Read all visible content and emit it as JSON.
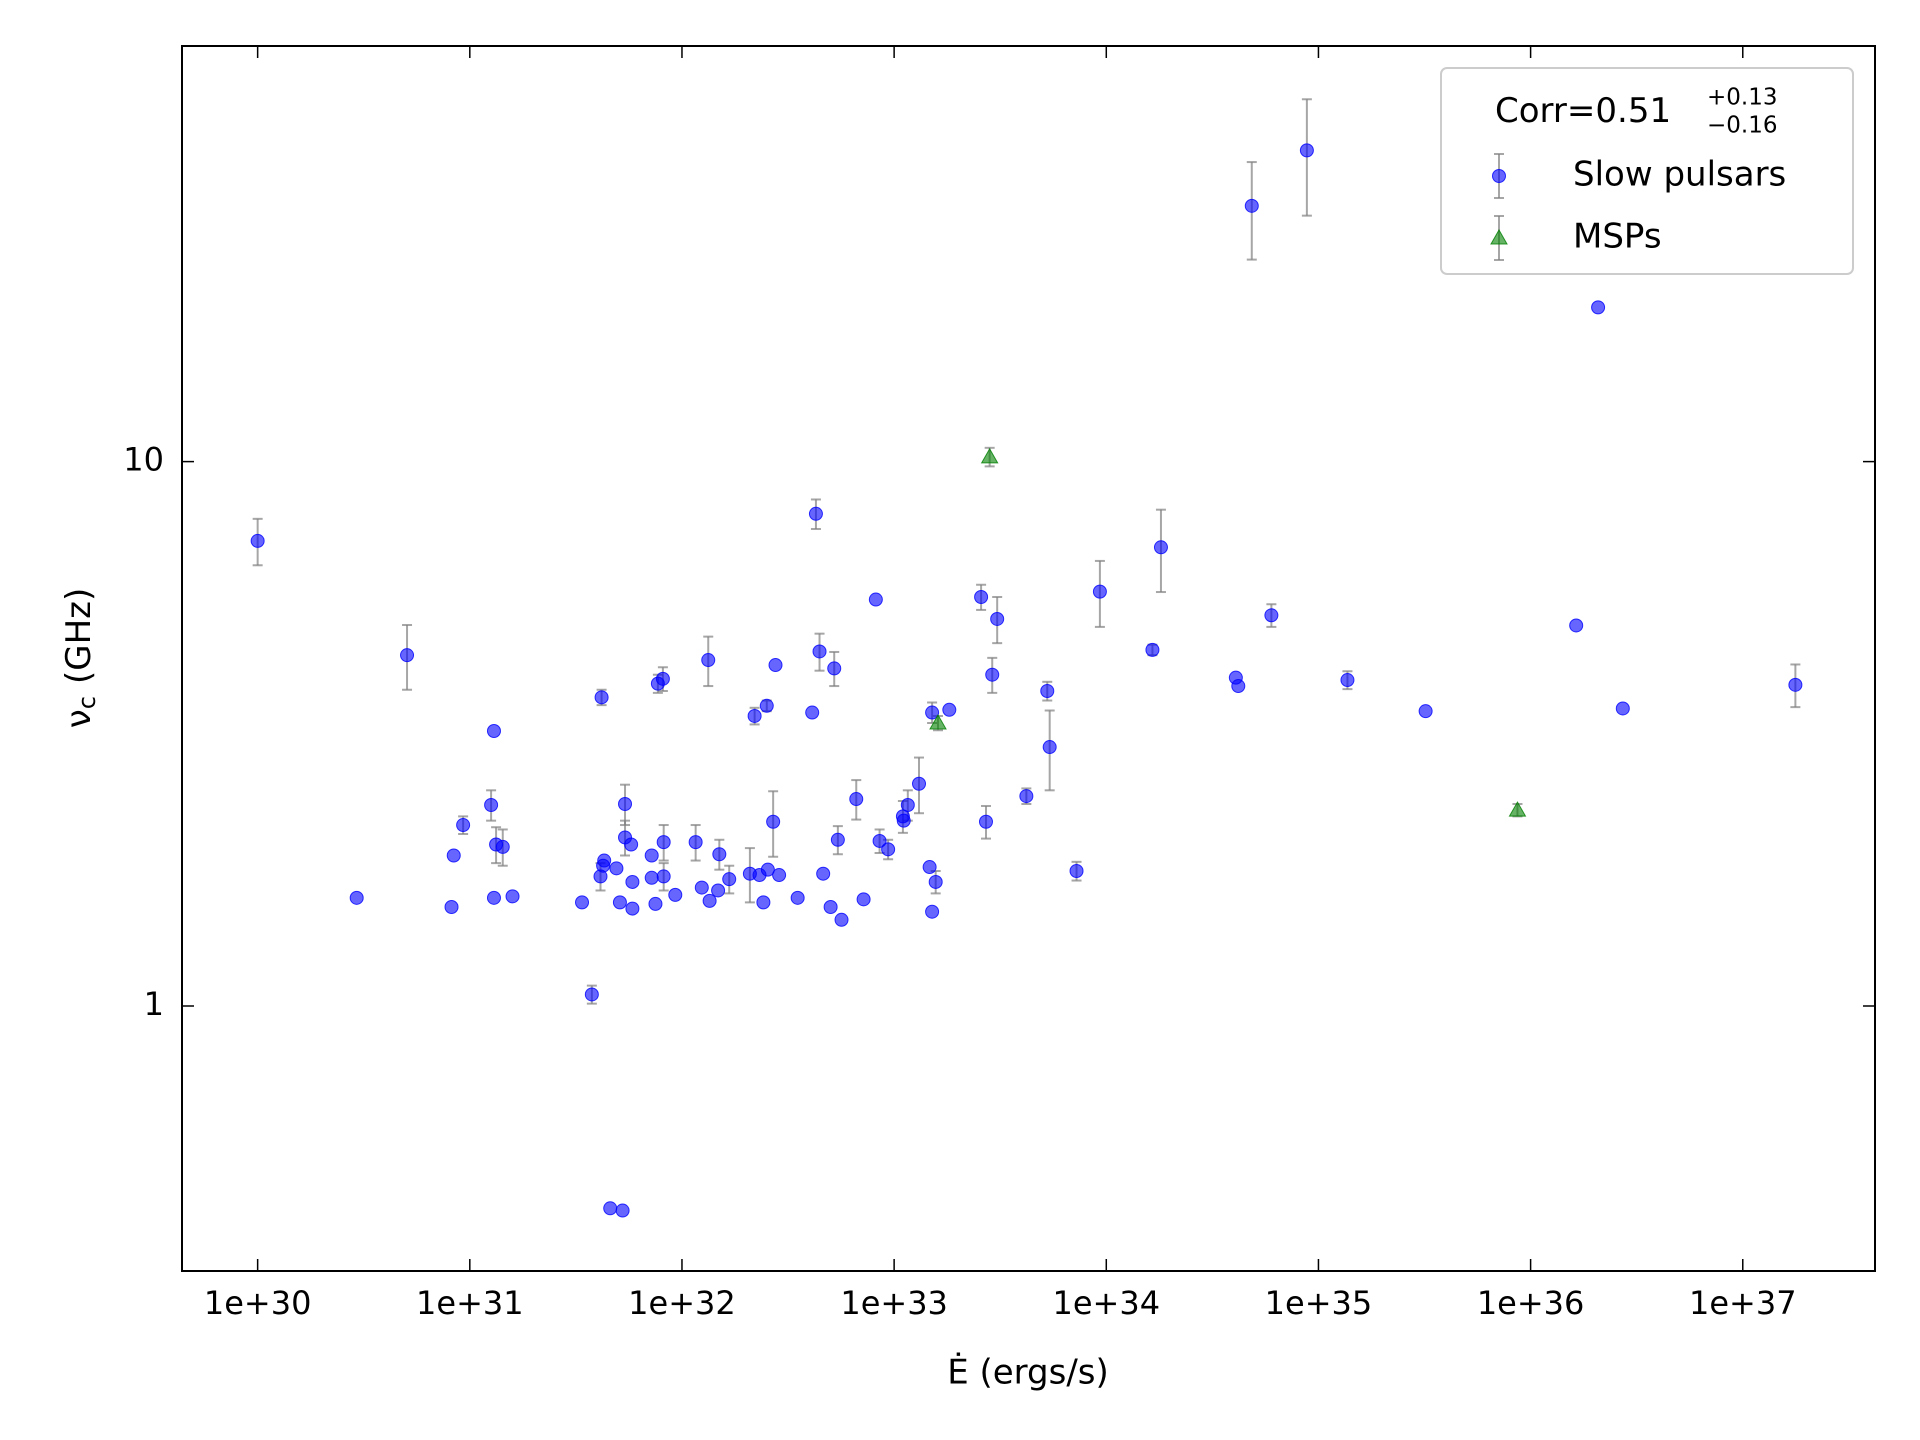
{
  "chart_data": {
    "type": "scatter",
    "xlabel": "Ė (ergs/s)",
    "ylabel": {
      "text": "ν",
      "sub": "c",
      "unit": "(GHz)"
    },
    "xscale": "log",
    "yscale": "log",
    "xlim": [
      4.4e+29,
      4.2e+37
    ],
    "ylim": [
      0.326,
      58
    ],
    "xticks": [
      {
        "value": 1e+30,
        "label": "1e+30"
      },
      {
        "value": 1e+31,
        "label": "1e+31"
      },
      {
        "value": 1e+32,
        "label": "1e+32"
      },
      {
        "value": 1e+33,
        "label": "1e+33"
      },
      {
        "value": 1e+34,
        "label": "1e+34"
      },
      {
        "value": 1e+35,
        "label": "1e+35"
      },
      {
        "value": 1e+36,
        "label": "1e+36"
      },
      {
        "value": 1e+37,
        "label": "1e+37"
      }
    ],
    "yticks": [
      1,
      10
    ],
    "legend": {
      "corner": "upper right",
      "title": {
        "text": "Corr=0.51",
        "sup": "+0.13",
        "sub": "−0.16"
      }
    },
    "series": [
      {
        "name": "Slow pulsars",
        "color": "#0000ff",
        "marker": "circle",
        "x": [
          1e+30,
          2.93e+30,
          5.06e+30,
          8.2e+30,
          8.4e+30,
          9.3e+30,
          1.26e+31,
          1.3e+31,
          1.3e+31,
          1.33e+31,
          1.43e+31,
          1.59e+31,
          3.38e+31,
          3.76e+31,
          4.13e+31,
          4.18e+31,
          4.25e+31,
          4.3e+31,
          4.59e+31,
          4.91e+31,
          5.1e+31,
          5.25e+31,
          5.39e+31,
          5.39e+31,
          5.76e+31,
          5.84e+31,
          5.84e+31,
          7.2e+31,
          7.2e+31,
          7.5e+31,
          7.7e+31,
          8.13e+31,
          8.2e+31,
          8.2e+31,
          9.3e+31,
          1.16e+32,
          1.24e+32,
          1.33e+32,
          1.35e+32,
          1.48e+32,
          1.5e+32,
          1.67e+32,
          2.09e+32,
          2.2e+32,
          2.32e+32,
          2.42e+32,
          2.51e+32,
          2.54e+32,
          2.69e+32,
          2.76e+32,
          2.87e+32,
          3.51e+32,
          4.11e+32,
          4.28e+32,
          4.45e+32,
          4.63e+32,
          5.02e+32,
          5.22e+32,
          5.43e+32,
          5.65e+32,
          6.63e+32,
          7.18e+32,
          8.2e+32,
          8.54e+32,
          9.37e+32,
          1.1e+33,
          1.11e+33,
          1.16e+33,
          1.31e+33,
          1.47e+33,
          1.51e+33,
          1.51e+33,
          1.57e+33,
          1.82e+33,
          2.57e+33,
          2.71e+33,
          2.9e+33,
          3.06e+33,
          4.2e+33,
          5.27e+33,
          5.41e+33,
          7.24e+33,
          9.33e+33,
          1.65e+34,
          1.81e+34,
          4.08e+34,
          4.19e+34,
          4.85e+34,
          6e+34,
          8.82e+34,
          1.37e+35,
          3.2e+35,
          1.64e+36,
          2.08e+36,
          2.72e+36,
          1.77e+37
        ],
        "values": [
          7.15,
          1.58,
          4.41,
          1.52,
          1.89,
          2.15,
          2.34,
          3.2,
          1.58,
          1.98,
          1.96,
          1.59,
          1.55,
          1.05,
          1.73,
          3.69,
          1.81,
          1.85,
          0.425,
          1.79,
          1.55,
          0.421,
          2.35,
          2.04,
          1.98,
          1.69,
          1.51,
          1.89,
          1.72,
          1.54,
          3.91,
          3.99,
          2.0,
          1.73,
          1.6,
          2.0,
          1.65,
          4.32,
          1.56,
          1.63,
          1.9,
          1.71,
          1.75,
          3.41,
          1.74,
          1.55,
          3.56,
          1.78,
          2.18,
          4.23,
          1.74,
          1.58,
          3.46,
          8.02,
          4.48,
          1.75,
          1.52,
          4.17,
          2.02,
          1.44,
          2.4,
          1.57,
          5.58,
          2.01,
          1.94,
          2.23,
          2.19,
          2.34,
          2.56,
          1.8,
          3.46,
          1.49,
          1.69,
          3.5,
          5.64,
          2.18,
          4.06,
          5.14,
          2.43,
          3.79,
          2.99,
          1.77,
          5.77,
          4.51,
          6.96,
          4.01,
          3.87,
          29.5,
          5.22,
          37.3,
          3.97,
          3.48,
          5.0,
          19.2,
          3.52,
          3.89
        ],
        "errors": [
          0.7,
          null,
          0.6,
          null,
          null,
          0.08,
          0.15,
          null,
          null,
          0.15,
          0.15,
          null,
          null,
          0.04,
          0.1,
          0.12,
          null,
          null,
          null,
          null,
          null,
          null,
          0.2,
          0.15,
          null,
          null,
          null,
          null,
          null,
          null,
          0.15,
          0.2,
          0.15,
          0.1,
          null,
          0.15,
          null,
          0.45,
          null,
          null,
          0.12,
          0.1,
          0.2,
          0.12,
          null,
          null,
          0.08,
          null,
          0.3,
          null,
          null,
          null,
          null,
          0.5,
          0.35,
          null,
          null,
          0.3,
          0.12,
          null,
          0.2,
          null,
          null,
          0.1,
          0.08,
          0.15,
          null,
          0.15,
          0.3,
          null,
          0.15,
          null,
          0.08,
          null,
          0.3,
          0.15,
          0.3,
          0.5,
          0.08,
          0.15,
          0.5,
          0.07,
          0.8,
          0.1,
          1.2,
          null,
          null,
          6,
          0.25,
          9,
          0.15,
          null,
          null,
          null,
          null,
          0.35
        ]
      },
      {
        "name": "MSPs",
        "color": "#008000",
        "marker": "triangle",
        "x": [
          2.82e+33,
          1.61e+33,
          8.67e+35
        ],
        "values": [
          10.2,
          3.31,
          2.29
        ],
        "errors": [
          0.4,
          0.1,
          0.06
        ]
      }
    ]
  }
}
